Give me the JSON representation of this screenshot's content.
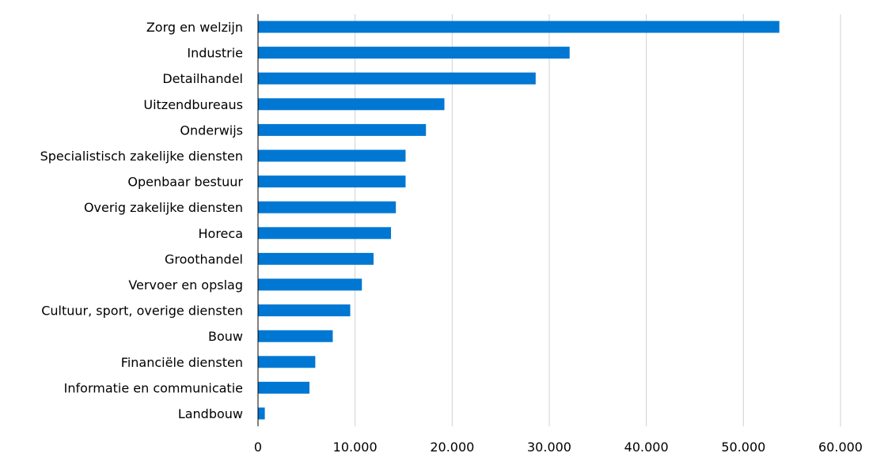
{
  "chart_data": {
    "type": "bar",
    "orientation": "horizontal",
    "categories": [
      "Zorg en welzijn",
      "Industrie",
      "Detailhandel",
      "Uitzendbureaus",
      "Onderwijs",
      "Specialistisch zakelijke diensten",
      "Openbaar bestuur",
      "Overig zakelijke diensten",
      "Horeca",
      "Groothandel",
      "Vervoer en opslag",
      "Cultuur, sport, overige diensten",
      "Bouw",
      "Financiële diensten",
      "Informatie en communicatie",
      "Landbouw"
    ],
    "values": [
      53700,
      32100,
      28600,
      19200,
      17300,
      15200,
      15200,
      14200,
      13700,
      11900,
      10700,
      9500,
      7700,
      5900,
      5300,
      700
    ],
    "xlim": [
      0,
      60000
    ],
    "xticks": [
      0,
      10000,
      20000,
      30000,
      40000,
      50000,
      60000
    ],
    "xtick_labels": [
      "0",
      "10.000",
      "20.000",
      "30.000",
      "40.000",
      "50.000",
      "60.000"
    ],
    "title": "",
    "xlabel": "",
    "ylabel": "",
    "grid": "vertical",
    "legend": "none",
    "bar_color": "#0077d2",
    "grid_color": "#d0d0d0",
    "axis_color": "#000000"
  }
}
